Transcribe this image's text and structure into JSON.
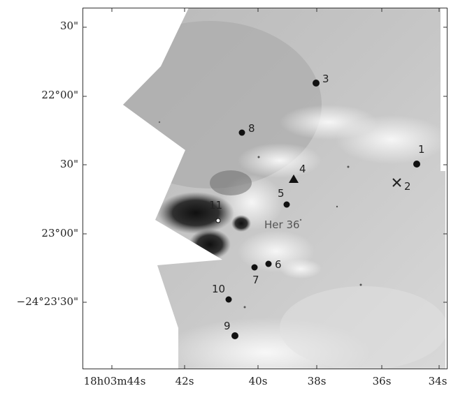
{
  "image": {
    "description_free": true,
    "field_label": "Her 36",
    "colors": {
      "ink": "#222222",
      "frame": "#333333",
      "background": "#ffffff"
    }
  },
  "axes": {
    "y_ticks": [
      "30\"",
      "22°00\"",
      "30\"",
      "23°00\"",
      "−24°23'30\""
    ],
    "x_ticks": [
      "18h03m44s",
      "42s",
      "40s",
      "38s",
      "36s",
      "34s"
    ]
  },
  "sources": [
    {
      "id": "1",
      "marker": "dot"
    },
    {
      "id": "2",
      "marker": "cross"
    },
    {
      "id": "3",
      "marker": "dot"
    },
    {
      "id": "4",
      "marker": "triangle"
    },
    {
      "id": "5",
      "marker": "dot"
    },
    {
      "id": "6",
      "marker": "dot"
    },
    {
      "id": "7",
      "marker": "dot"
    },
    {
      "id": "8",
      "marker": "dot"
    },
    {
      "id": "9",
      "marker": "dot"
    },
    {
      "id": "10",
      "marker": "dot"
    },
    {
      "id": "11",
      "marker": "dot"
    }
  ]
}
